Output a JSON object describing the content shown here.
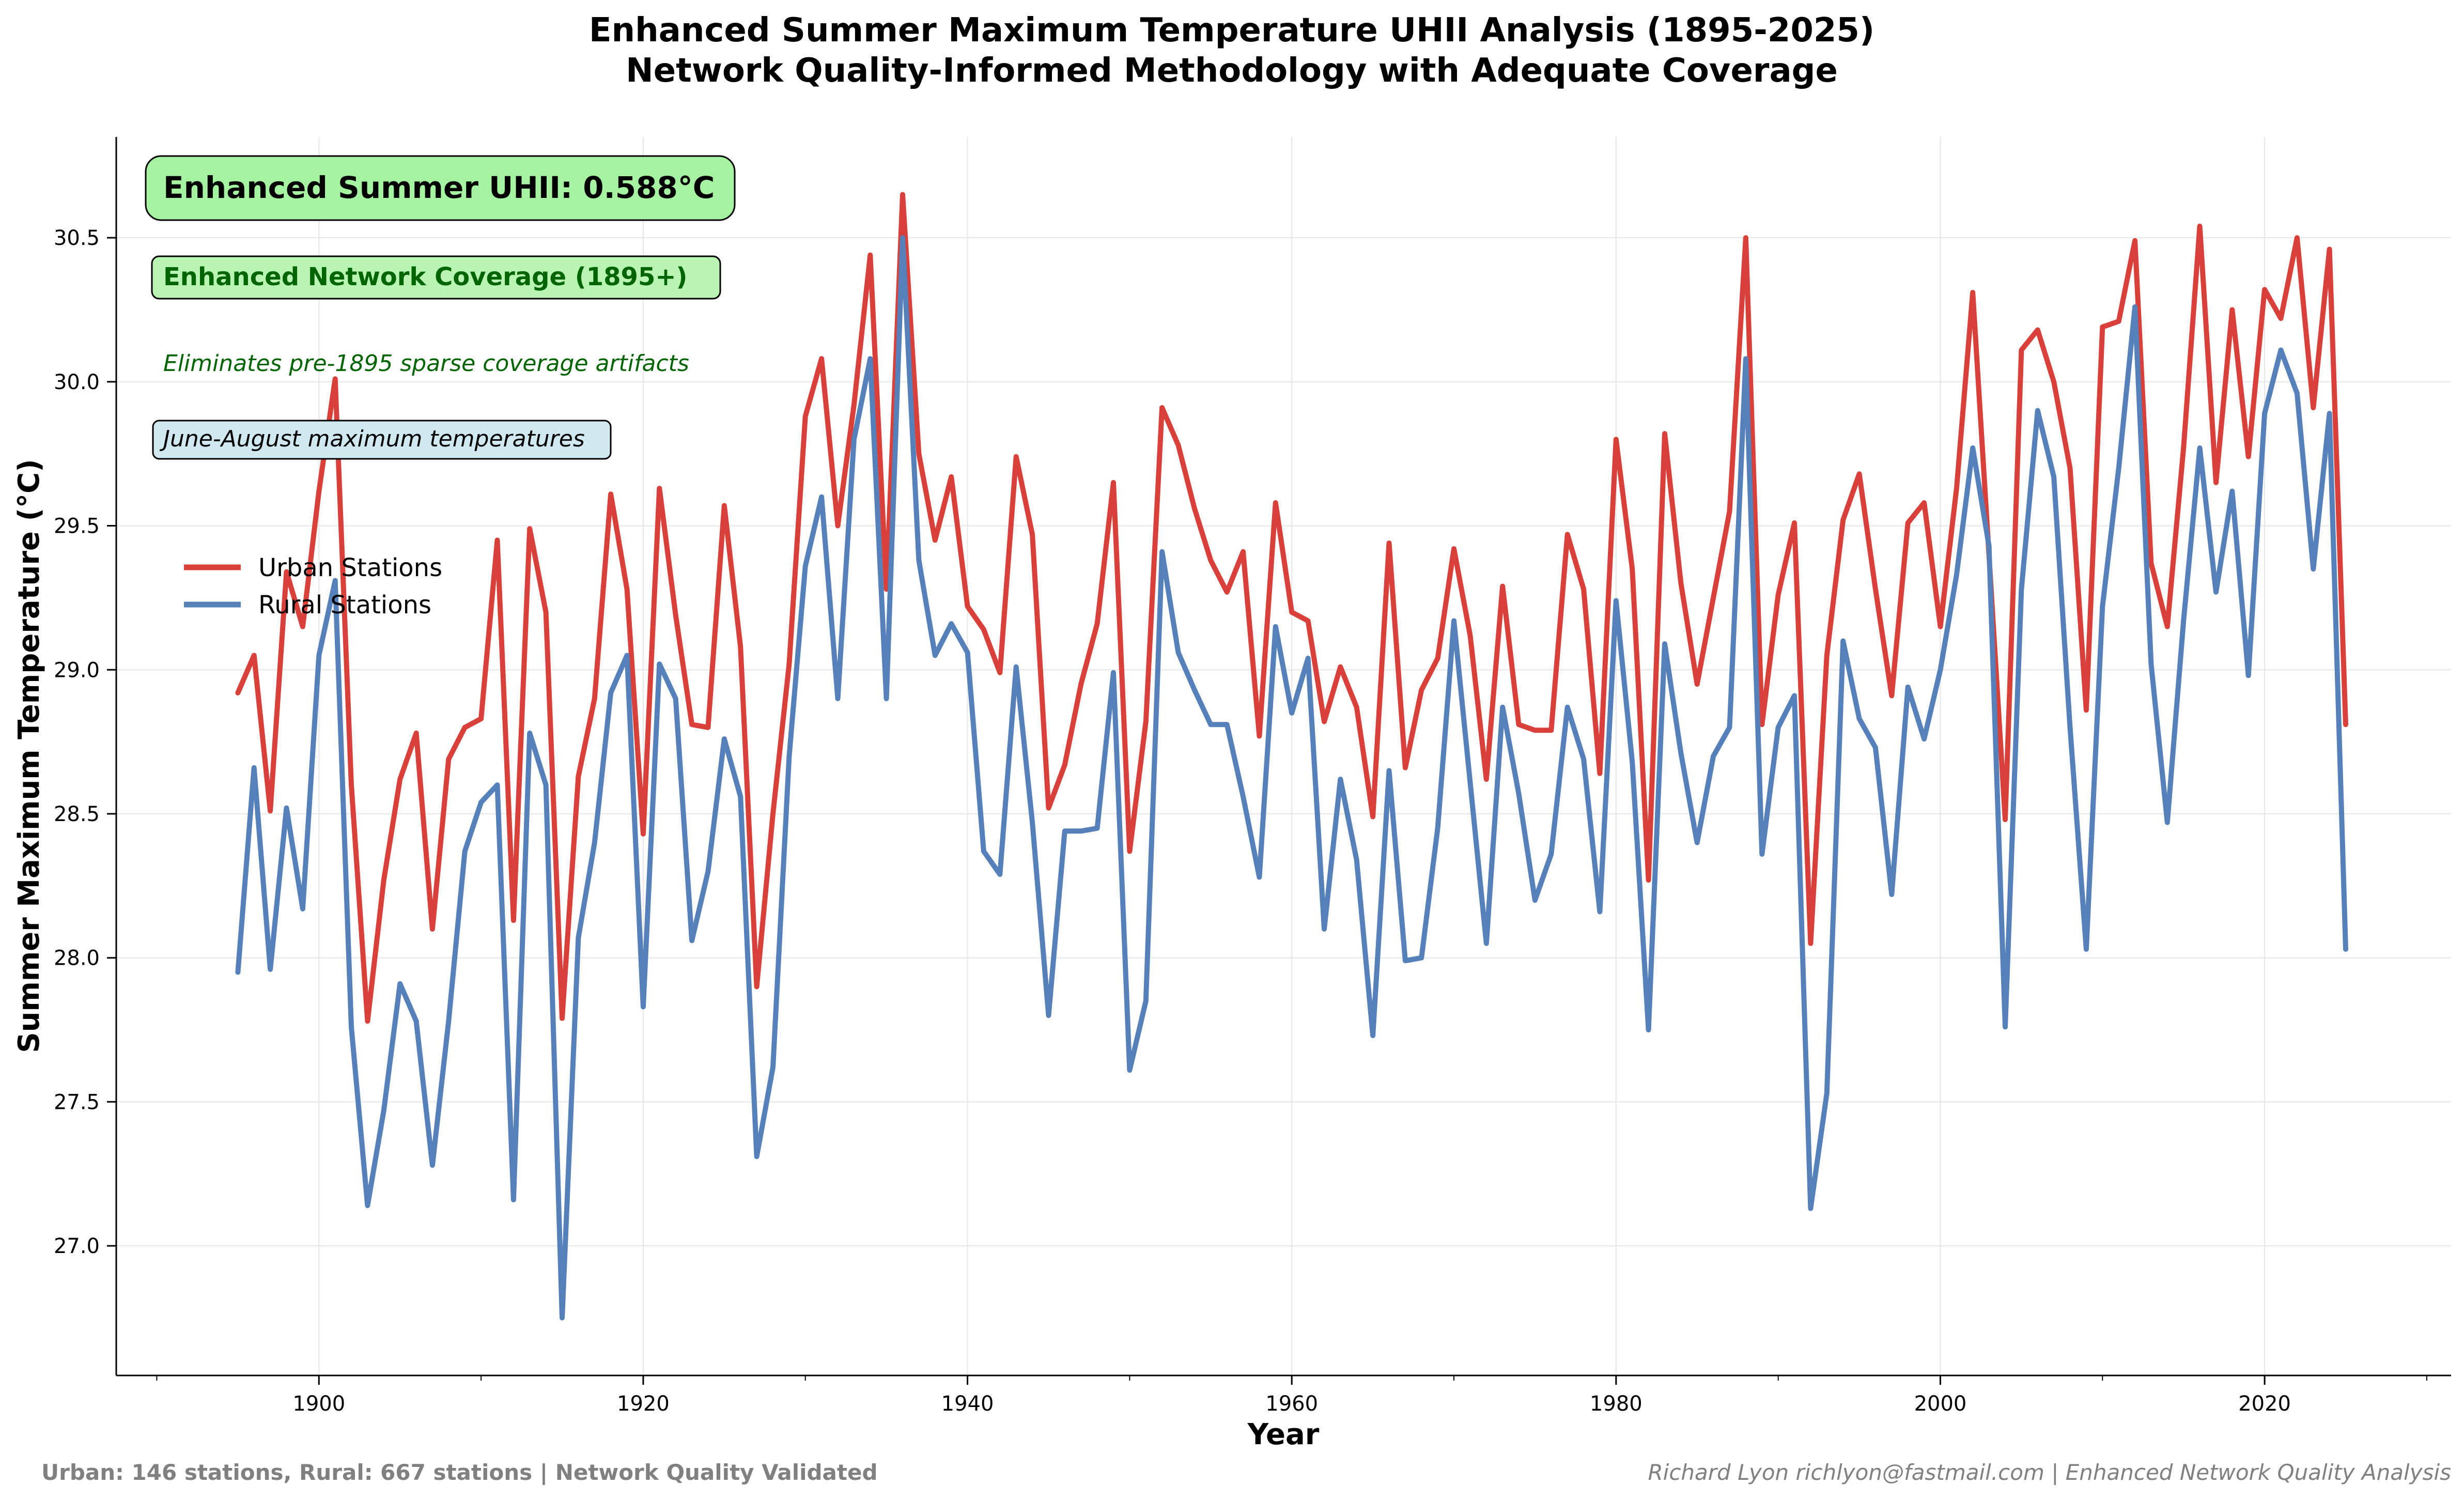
{
  "title_line1": "Enhanced Summer Maximum Temperature UHII Analysis (1895-2025)",
  "title_line2": "Network Quality-Informed Methodology with Adequate Coverage",
  "footer_left": "Urban: 146 stations, Rural: 667 stations | Network Quality Validated",
  "footer_right": "Richard Lyon richlyon@fastmail.com | Enhanced Network Quality Analysis",
  "annotations": {
    "uhii": "Enhanced Summer UHII: 0.588°C",
    "coverage": "Enhanced Network Coverage (1895+)",
    "eliminates": "Eliminates pre-1895 sparse coverage artifacts",
    "season": "June-August maximum temperatures"
  },
  "colors": {
    "urban": "#d9403a",
    "rural": "#5580ba",
    "uhii_box": "#a5f2a0",
    "coverage_box": "#b8f5b3",
    "season_box": "#d0e8f0"
  },
  "chart_data": {
    "type": "line",
    "title": "Enhanced Summer Maximum Temperature UHII Analysis (1895-2025)\nNetwork Quality-Informed Methodology with Adequate Coverage",
    "xlabel": "Year",
    "ylabel": "Summer Maximum Temperature (°C)",
    "xlim": [
      1887.5,
      2031.5
    ],
    "ylim": [
      26.55,
      30.85
    ],
    "xticks": [
      1900,
      1920,
      1940,
      1960,
      1980,
      2000,
      2020
    ],
    "yticks": [
      27.0,
      27.5,
      28.0,
      28.5,
      29.0,
      29.5,
      30.0,
      30.5
    ],
    "ytick_labels": [
      "27.0",
      "27.5",
      "28.0",
      "28.5",
      "29.0",
      "29.5",
      "30.0",
      "30.5"
    ],
    "grid": true,
    "legend_position": "left",
    "x_start": 1895,
    "x_end": 2025,
    "series": [
      {
        "name": "Urban Stations",
        "color": "#d9403a",
        "values": [
          28.92,
          29.05,
          28.51,
          29.34,
          29.15,
          29.62,
          30.01,
          28.6,
          27.78,
          28.27,
          28.62,
          28.78,
          28.1,
          28.69,
          28.8,
          28.83,
          29.45,
          28.13,
          29.49,
          29.2,
          27.79,
          28.63,
          28.9,
          29.61,
          29.28,
          28.43,
          29.63,
          29.19,
          28.81,
          28.8,
          29.57,
          29.08,
          27.9,
          28.5,
          29.02,
          29.88,
          30.08,
          29.5,
          29.92,
          30.44,
          29.28,
          30.65,
          29.75,
          29.45,
          29.67,
          29.22,
          29.14,
          28.99,
          29.74,
          29.47,
          28.52,
          28.67,
          28.95,
          29.16,
          29.65,
          28.37,
          28.82,
          29.91,
          29.78,
          29.56,
          29.38,
          29.27,
          29.41,
          28.77,
          29.58,
          29.2,
          29.17,
          28.82,
          29.01,
          28.87,
          28.49,
          29.44,
          28.66,
          28.93,
          29.04,
          29.42,
          29.12,
          28.62,
          29.29,
          28.81,
          28.79,
          28.79,
          29.47,
          29.28,
          28.64,
          29.8,
          29.35,
          28.27,
          29.82,
          29.3,
          28.95,
          29.25,
          29.55,
          30.5,
          28.81,
          29.26,
          29.51,
          28.05,
          29.05,
          29.52,
          29.68,
          29.28,
          28.91,
          29.51,
          29.58,
          29.15,
          29.63,
          30.31,
          29.4,
          28.48,
          30.11,
          30.18,
          30.0,
          29.7,
          28.86,
          30.19,
          30.21,
          30.49,
          29.37,
          29.15,
          29.77,
          30.54,
          29.65,
          30.25,
          29.74,
          30.32,
          30.22,
          30.5,
          29.91,
          30.46,
          28.81
        ]
      },
      {
        "name": "Rural Stations",
        "color": "#5580ba",
        "values": [
          27.95,
          28.66,
          27.96,
          28.52,
          28.17,
          29.05,
          29.31,
          27.76,
          27.14,
          27.47,
          27.91,
          27.78,
          27.28,
          27.78,
          28.37,
          28.54,
          28.6,
          27.16,
          28.78,
          28.6,
          26.75,
          28.07,
          28.4,
          28.92,
          29.05,
          27.83,
          29.02,
          28.9,
          28.06,
          28.3,
          28.76,
          28.56,
          27.31,
          27.62,
          28.7,
          29.36,
          29.6,
          28.9,
          29.8,
          30.08,
          28.9,
          30.5,
          29.38,
          29.05,
          29.16,
          29.06,
          28.37,
          28.29,
          29.01,
          28.47,
          27.8,
          28.44,
          28.44,
          28.45,
          28.99,
          27.61,
          27.85,
          29.41,
          29.06,
          28.93,
          28.81,
          28.81,
          28.56,
          28.28,
          29.15,
          28.85,
          29.04,
          28.1,
          28.62,
          28.34,
          27.73,
          28.65,
          27.99,
          28.0,
          28.45,
          29.17,
          28.61,
          28.05,
          28.87,
          28.57,
          28.2,
          28.36,
          28.87,
          28.69,
          28.16,
          29.24,
          28.68,
          27.75,
          29.09,
          28.71,
          28.4,
          28.7,
          28.8,
          30.08,
          28.36,
          28.8,
          28.91,
          27.13,
          27.53,
          29.1,
          28.83,
          28.73,
          28.22,
          28.94,
          28.76,
          29.0,
          29.33,
          29.77,
          29.43,
          27.76,
          29.28,
          29.9,
          29.67,
          28.8,
          28.03,
          29.22,
          29.7,
          30.26,
          29.02,
          28.47,
          29.17,
          29.77,
          29.27,
          29.62,
          28.98,
          29.89,
          30.11,
          29.96,
          29.35,
          29.89,
          28.03
        ]
      }
    ]
  }
}
